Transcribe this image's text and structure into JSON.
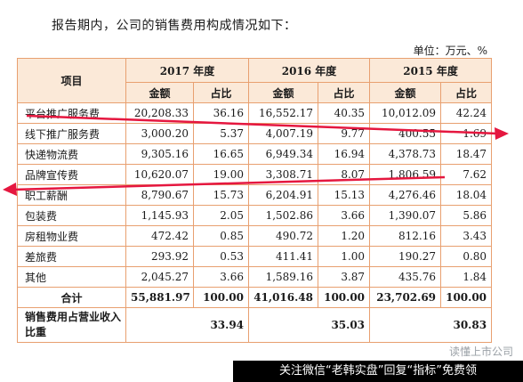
{
  "intro": "报告期内，公司的销售费用构成情况如下：",
  "unit": "单位：万元、%",
  "header": {
    "item": "项目",
    "years": [
      "2017 年度",
      "2016 年度",
      "2015 年度"
    ],
    "amount": "金额",
    "ratio": "占比"
  },
  "rows": [
    {
      "label": "平台推广服务费",
      "v": [
        "20,208.33",
        "36.16",
        "16,552.17",
        "40.35",
        "10,012.09",
        "42.24"
      ]
    },
    {
      "label": "线下推广服务费",
      "v": [
        "3,000.20",
        "5.37",
        "4,007.19",
        "9.77",
        "400.55",
        "1.69"
      ]
    },
    {
      "label": "快递物流费",
      "v": [
        "9,305.16",
        "16.65",
        "6,949.34",
        "16.94",
        "4,378.73",
        "18.47"
      ]
    },
    {
      "label": "品牌宣传费",
      "v": [
        "10,620.07",
        "19.00",
        "3,308.71",
        "8.07",
        "1,806.59",
        "7.62"
      ]
    },
    {
      "label": "职工薪酬",
      "v": [
        "8,790.67",
        "15.73",
        "6,204.91",
        "15.13",
        "4,276.46",
        "18.04"
      ]
    },
    {
      "label": "包装费",
      "v": [
        "1,145.93",
        "2.05",
        "1,502.86",
        "3.66",
        "1,390.07",
        "5.86"
      ]
    },
    {
      "label": "房租物业费",
      "v": [
        "472.42",
        "0.85",
        "490.72",
        "1.20",
        "812.16",
        "3.43"
      ]
    },
    {
      "label": "差旅费",
      "v": [
        "293.92",
        "0.53",
        "411.41",
        "1.00",
        "190.27",
        "0.80"
      ]
    },
    {
      "label": "其他",
      "v": [
        "2,045.27",
        "3.66",
        "1,589.16",
        "3.87",
        "435.76",
        "1.84"
      ]
    }
  ],
  "total": {
    "label": "合计",
    "v": [
      "55,881.97",
      "100.00",
      "41,016.48",
      "100.00",
      "23,702.69",
      "100.00"
    ]
  },
  "ratio_row": {
    "label": "销售费用占营业收入比重",
    "v": [
      "33.94",
      "35.03",
      "30.83"
    ]
  },
  "watermark": "读懂上市公司",
  "banner": "关注微信“老韩实盘”回复“指标”免费领",
  "colors": {
    "arrow": "#e5173f",
    "border": "#e8a070",
    "header_bg": "#fbe9d8"
  }
}
